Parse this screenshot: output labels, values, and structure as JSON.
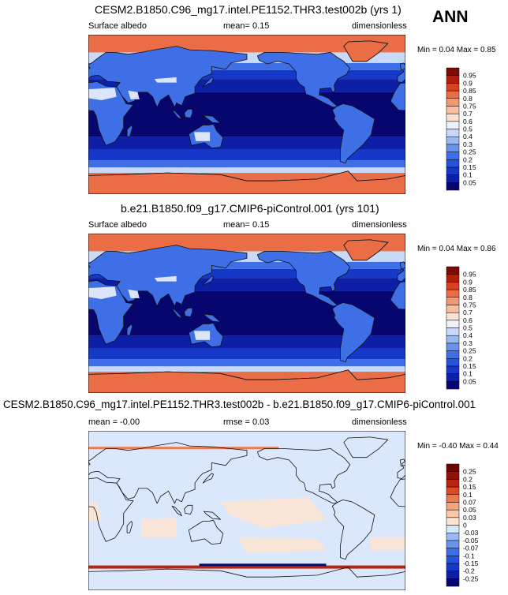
{
  "season_label": "ANN",
  "panels": [
    {
      "title": "CESM2.B1850.C96_mg17.intel.PE1152.THR3.test002b (yrs 1)",
      "left_label": "Surface albedo",
      "stat_label": "mean=  0.15",
      "units_label": "dimensionless",
      "minmax_label": "Min =  0.04 Max =  0.85"
    },
    {
      "title": "b.e21.B1850.f09_g17.CMIP6-piControl.001 (yrs 101)",
      "left_label": "Surface albedo",
      "stat_label": "mean=  0.15",
      "units_label": "dimensionless",
      "minmax_label": "Min =  0.04 Max =  0.86"
    },
    {
      "title": "CESM2.B1850.C96_mg17.intel.PE1152.THR3.test002b - b.e21.B1850.f09_g17.CMIP6-piControl.001",
      "left_label": "mean =  -0.00",
      "stat_label": "rmse =  0.03",
      "units_label": "dimensionless",
      "minmax_label": "Min =  -0.40 Max =  0.44"
    }
  ],
  "chart_data": [
    {
      "type": "heatmap",
      "title": "CESM2.B1850.C96_mg17.intel.PE1152.THR3.test002b (yrs 1)",
      "variable": "Surface albedo",
      "units": "dimensionless",
      "mean": 0.15,
      "min": 0.04,
      "max": 0.85,
      "colorbar_levels": [
        0.05,
        0.1,
        0.15,
        0.2,
        0.25,
        0.3,
        0.4,
        0.5,
        0.6,
        0.7,
        0.75,
        0.8,
        0.85,
        0.9,
        0.95
      ],
      "colorbar_colors": [
        "#06066e",
        "#0c1fa6",
        "#1638c8",
        "#2653dc",
        "#3e6fe6",
        "#6a93ee",
        "#9ab8f4",
        "#c8daf8",
        "#eef3fb",
        "#fbe2d0",
        "#f8c0a0",
        "#f39870",
        "#eb6d45",
        "#d8401f",
        "#ae1e0d",
        "#7a0c04"
      ]
    },
    {
      "type": "heatmap",
      "title": "b.e21.B1850.f09_g17.CMIP6-piControl.001 (yrs 101)",
      "variable": "Surface albedo",
      "units": "dimensionless",
      "mean": 0.15,
      "min": 0.04,
      "max": 0.86,
      "colorbar_levels": [
        0.05,
        0.1,
        0.15,
        0.2,
        0.25,
        0.3,
        0.4,
        0.5,
        0.6,
        0.7,
        0.75,
        0.8,
        0.85,
        0.9,
        0.95
      ],
      "colorbar_colors": [
        "#06066e",
        "#0c1fa6",
        "#1638c8",
        "#2653dc",
        "#3e6fe6",
        "#6a93ee",
        "#9ab8f4",
        "#c8daf8",
        "#eef3fb",
        "#fbe2d0",
        "#f8c0a0",
        "#f39870",
        "#eb6d45",
        "#d8401f",
        "#ae1e0d",
        "#7a0c04"
      ]
    },
    {
      "type": "heatmap",
      "title": "CESM2.B1850.C96_mg17.intel.PE1152.THR3.test002b - b.e21.B1850.f09_g17.CMIP6-piControl.001",
      "units": "dimensionless",
      "mean": -0.0,
      "rmse": 0.03,
      "min": -0.4,
      "max": 0.44,
      "colorbar_levels": [
        -0.25,
        -0.2,
        -0.15,
        -0.1,
        -0.07,
        -0.05,
        -0.03,
        0,
        0.03,
        0.05,
        0.07,
        0.1,
        0.15,
        0.2,
        0.25
      ],
      "colorbar_colors": [
        "#06066e",
        "#0c1fa6",
        "#1638c8",
        "#2653dc",
        "#3e6fe6",
        "#6a93ee",
        "#9ab8f4",
        "#dbe8fb",
        "#fbe5d5",
        "#f8c8aa",
        "#f4a47c",
        "#ec7a50",
        "#dd4a26",
        "#b92410",
        "#8e1306",
        "#6a0804"
      ]
    }
  ]
}
